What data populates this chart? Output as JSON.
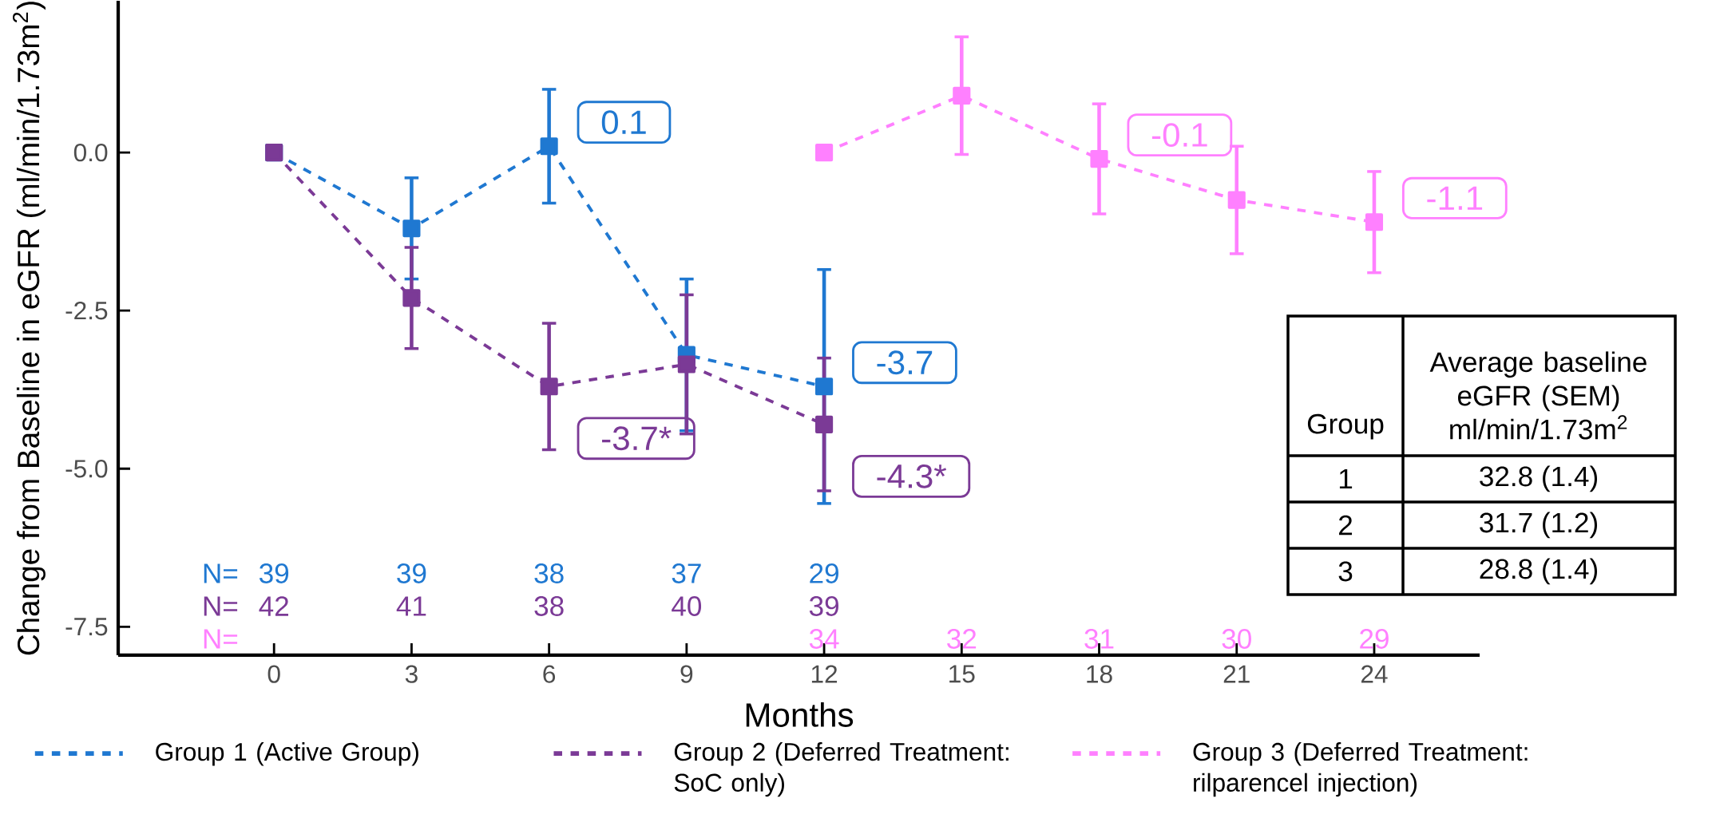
{
  "chart_data": {
    "type": "line",
    "xlabel": "Months",
    "ylabel": "Change from Baseline in eGFR (ml/min/1.73m$^{2}$)",
    "xlim": [
      -3.4,
      26.3
    ],
    "ylim": [
      -7.95,
      2.4
    ],
    "xticks": [
      0,
      3,
      6,
      9,
      12,
      15,
      18,
      21,
      24
    ],
    "yticks": [
      {
        "value": 0,
        "label": "0.0"
      },
      {
        "value": -2.5,
        "label": "-2.5"
      },
      {
        "value": -5,
        "label": "-5.0"
      },
      {
        "value": -7.5,
        "label": "-7.5"
      }
    ],
    "marker": "square",
    "line_style": "dashed",
    "legend": "bottom",
    "grid": false,
    "series": [
      {
        "name": "Group 1 (Active Group)",
        "color": "#1f78d1",
        "x": [
          0,
          3,
          6,
          9,
          12
        ],
        "values": [
          0,
          -1.2,
          0.1,
          -3.2,
          -3.7
        ],
        "errors": [
          null,
          0.8,
          0.9,
          1.2,
          1.85
        ],
        "value_labels": [
          null,
          null,
          "0.1",
          null,
          "-3.7"
        ]
      },
      {
        "name": "Group 2 (Deferred Treatment: SoC only)",
        "color": "#7b3a96",
        "x": [
          0,
          3,
          6,
          9,
          12
        ],
        "values": [
          0,
          -2.3,
          -3.7,
          -3.35,
          -4.3
        ],
        "errors": [
          null,
          0.8,
          1.0,
          1.1,
          1.05
        ],
        "value_labels": [
          null,
          null,
          "-3.7*",
          null,
          "-4.3*"
        ]
      },
      {
        "name": "Group 3 (Deferred Treatment: rilparencel injection)",
        "color": "#ff80ff",
        "x": [
          12,
          15,
          18,
          21,
          24
        ],
        "values": [
          0,
          0.9,
          -0.1,
          -0.75,
          -1.1
        ],
        "errors": [
          null,
          0.93,
          0.87,
          0.85,
          0.8
        ],
        "value_labels": [
          null,
          null,
          "-0.1",
          null,
          "-1.1"
        ]
      }
    ],
    "annotations": [
      "N=",
      "39",
      "39",
      "38",
      "37",
      "29",
      "N=",
      "42",
      "41",
      "38",
      "40",
      "39",
      "N=",
      "34",
      "32",
      "31",
      "30",
      "29",
      "Group",
      "Average baseline eGFR (SEM) ml/min/1.73m$^{2}$",
      "1",
      "32.8 (1.4)",
      "2",
      "31.7 (1.2)",
      "3",
      "28.8 (1.4)"
    ]
  }
}
